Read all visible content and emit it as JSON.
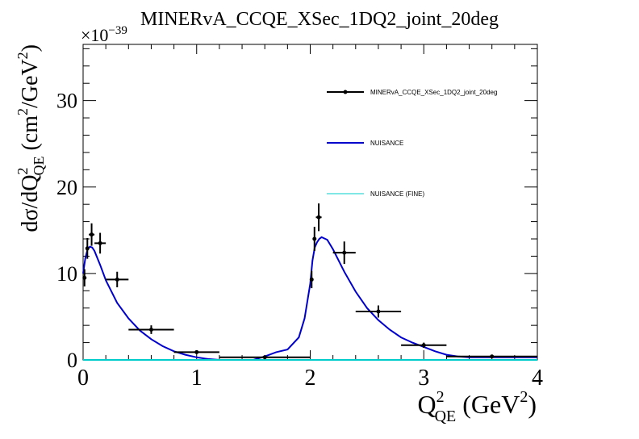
{
  "chart_data": {
    "type": "line",
    "title": "MINERvA_CCQE_XSec_1DQ2_joint_20deg",
    "xlabel": {
      "main": "Q",
      "sup": "2",
      "sub": "QE",
      "unit_open": " (GeV",
      "unit_sup": "2",
      "unit_close": ")"
    },
    "ylabel": {
      "main": "dσ/dQ",
      "sup": "2",
      "sub": "QE",
      "unit_open": " (cm",
      "unit_sup": "2",
      "unit_mid": "/GeV",
      "unit_sup2": "2",
      "unit_close": ")"
    },
    "y_exponent_label": {
      "base": "×10",
      "exp": "−39"
    },
    "xlim": [
      0,
      4
    ],
    "ylim": [
      0,
      36.5
    ],
    "x_ticks": [
      0,
      1,
      2,
      3,
      4
    ],
    "x_tick_labels": [
      "0",
      "1",
      "2",
      "3",
      "4"
    ],
    "y_ticks": [
      0,
      10,
      20,
      30
    ],
    "y_tick_labels": [
      "0",
      "10",
      "20",
      "30"
    ],
    "legend_position": "top-right",
    "series": [
      {
        "name": "MINERvA_CCQE_XSec_1DQ2_joint_20deg",
        "style": "points-with-errors",
        "color": "#000000",
        "points": [
          {
            "x": 0.0125,
            "xerr": 0.0125,
            "y": 9.5,
            "yerr": 1.0
          },
          {
            "x": 0.0375,
            "xerr": 0.0125,
            "y": 12.9,
            "yerr": 1.2
          },
          {
            "x": 0.075,
            "xerr": 0.025,
            "y": 14.5,
            "yerr": 1.3
          },
          {
            "x": 0.15,
            "xerr": 0.05,
            "y": 13.5,
            "yerr": 1.2
          },
          {
            "x": 0.3,
            "xerr": 0.1,
            "y": 9.3,
            "yerr": 0.9
          },
          {
            "x": 0.6,
            "xerr": 0.2,
            "y": 3.5,
            "yerr": 0.5
          },
          {
            "x": 1.0,
            "xerr": 0.2,
            "y": 0.9,
            "yerr": 0.2
          },
          {
            "x": 1.6,
            "xerr": 0.4,
            "y": 0.3,
            "yerr": 0.1
          },
          {
            "x": 2.0125,
            "xerr": 0.0125,
            "y": 9.3,
            "yerr": 1.0
          },
          {
            "x": 2.0375,
            "xerr": 0.0125,
            "y": 14.0,
            "yerr": 1.4
          },
          {
            "x": 2.075,
            "xerr": 0.025,
            "y": 16.5,
            "yerr": 1.6
          },
          {
            "x": 2.3,
            "xerr": 0.1,
            "y": 12.4,
            "yerr": 1.3
          },
          {
            "x": 2.6,
            "xerr": 0.2,
            "y": 5.6,
            "yerr": 0.7
          },
          {
            "x": 3.0,
            "xerr": 0.2,
            "y": 1.7,
            "yerr": 0.3
          },
          {
            "x": 3.6,
            "xerr": 0.4,
            "y": 0.4,
            "yerr": 0.1
          }
        ]
      },
      {
        "name": "NUISANCE",
        "style": "line",
        "color": "#0000cc",
        "x": [
          0.0,
          0.02,
          0.04,
          0.06,
          0.08,
          0.1,
          0.15,
          0.2,
          0.3,
          0.4,
          0.5,
          0.6,
          0.7,
          0.8,
          0.9,
          1.0,
          1.1,
          1.2,
          1.3,
          1.4,
          1.5,
          1.6,
          1.7,
          1.8,
          1.9,
          1.95,
          2.0,
          2.02,
          2.04,
          2.06,
          2.08,
          2.1,
          2.15,
          2.2,
          2.3,
          2.4,
          2.5,
          2.6,
          2.7,
          2.8,
          2.9,
          3.0,
          3.1,
          3.2,
          3.3,
          3.4,
          3.6,
          4.0
        ],
        "y": [
          10.0,
          11.8,
          12.8,
          13.1,
          13.0,
          12.6,
          11.0,
          9.2,
          6.6,
          4.8,
          3.4,
          2.4,
          1.6,
          1.0,
          0.6,
          0.3,
          0.1,
          0.0,
          0.0,
          0.0,
          0.0,
          0.4,
          0.9,
          1.2,
          2.6,
          4.8,
          8.8,
          11.5,
          13.0,
          13.6,
          14.0,
          14.2,
          13.9,
          12.8,
          10.2,
          7.9,
          6.0,
          4.6,
          3.5,
          2.6,
          2.0,
          1.5,
          1.0,
          0.6,
          0.4,
          0.3,
          0.3,
          0.3
        ]
      },
      {
        "name": "NUISANCE (FINE)",
        "style": "line",
        "color": "#00cccc",
        "x": [
          0.0,
          4.0
        ],
        "y": [
          0.0,
          0.0
        ]
      }
    ]
  }
}
